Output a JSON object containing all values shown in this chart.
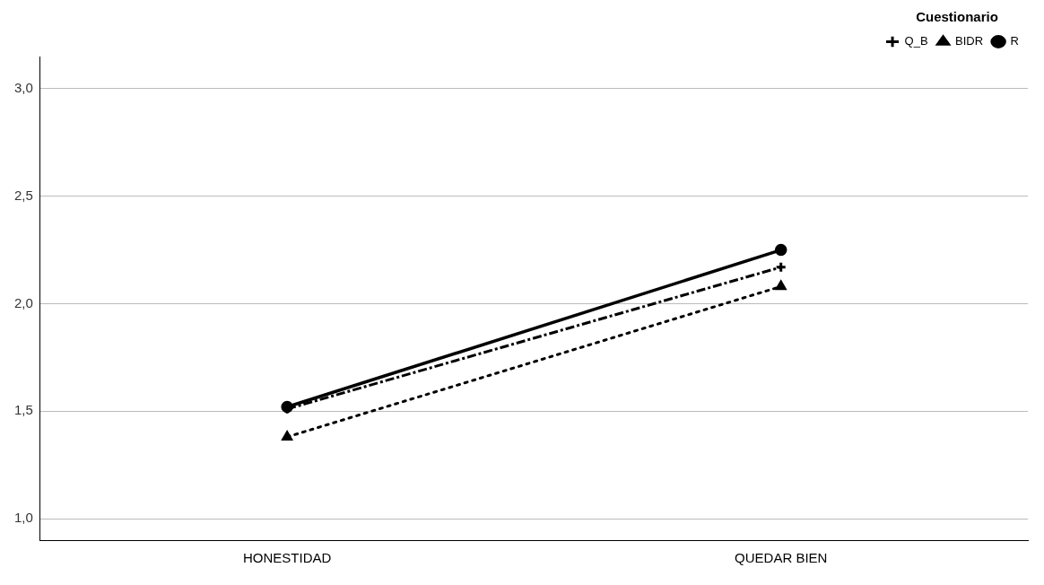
{
  "chart_data": {
    "type": "line",
    "categories": [
      "HONESTIDAD",
      "QUEDAR BIEN"
    ],
    "series": [
      {
        "name": "R",
        "color": "#000000",
        "values": [
          1.52,
          2.25
        ],
        "marker": "circle",
        "line_style": "solid"
      },
      {
        "name": "BIDR",
        "color": "#000000",
        "values": [
          1.38,
          2.08
        ],
        "marker": "triangle",
        "line_style": "dotted"
      },
      {
        "name": "Q_B",
        "color": "#000000",
        "values": [
          1.51,
          2.17
        ],
        "marker": "cross",
        "line_style": "dashed"
      }
    ],
    "ylim": [
      0.9,
      3.15
    ],
    "yticks": [
      {
        "value": 1,
        "label": "1,0"
      },
      {
        "value": 1.5,
        "label": "1,5"
      },
      {
        "value": 2,
        "label": "2,0"
      },
      {
        "value": 2.5,
        "label": "2,5"
      },
      {
        "value": 3,
        "label": "3,0"
      }
    ],
    "grid": "y",
    "legend": "top right",
    "legend_title": "Cuestionario"
  }
}
